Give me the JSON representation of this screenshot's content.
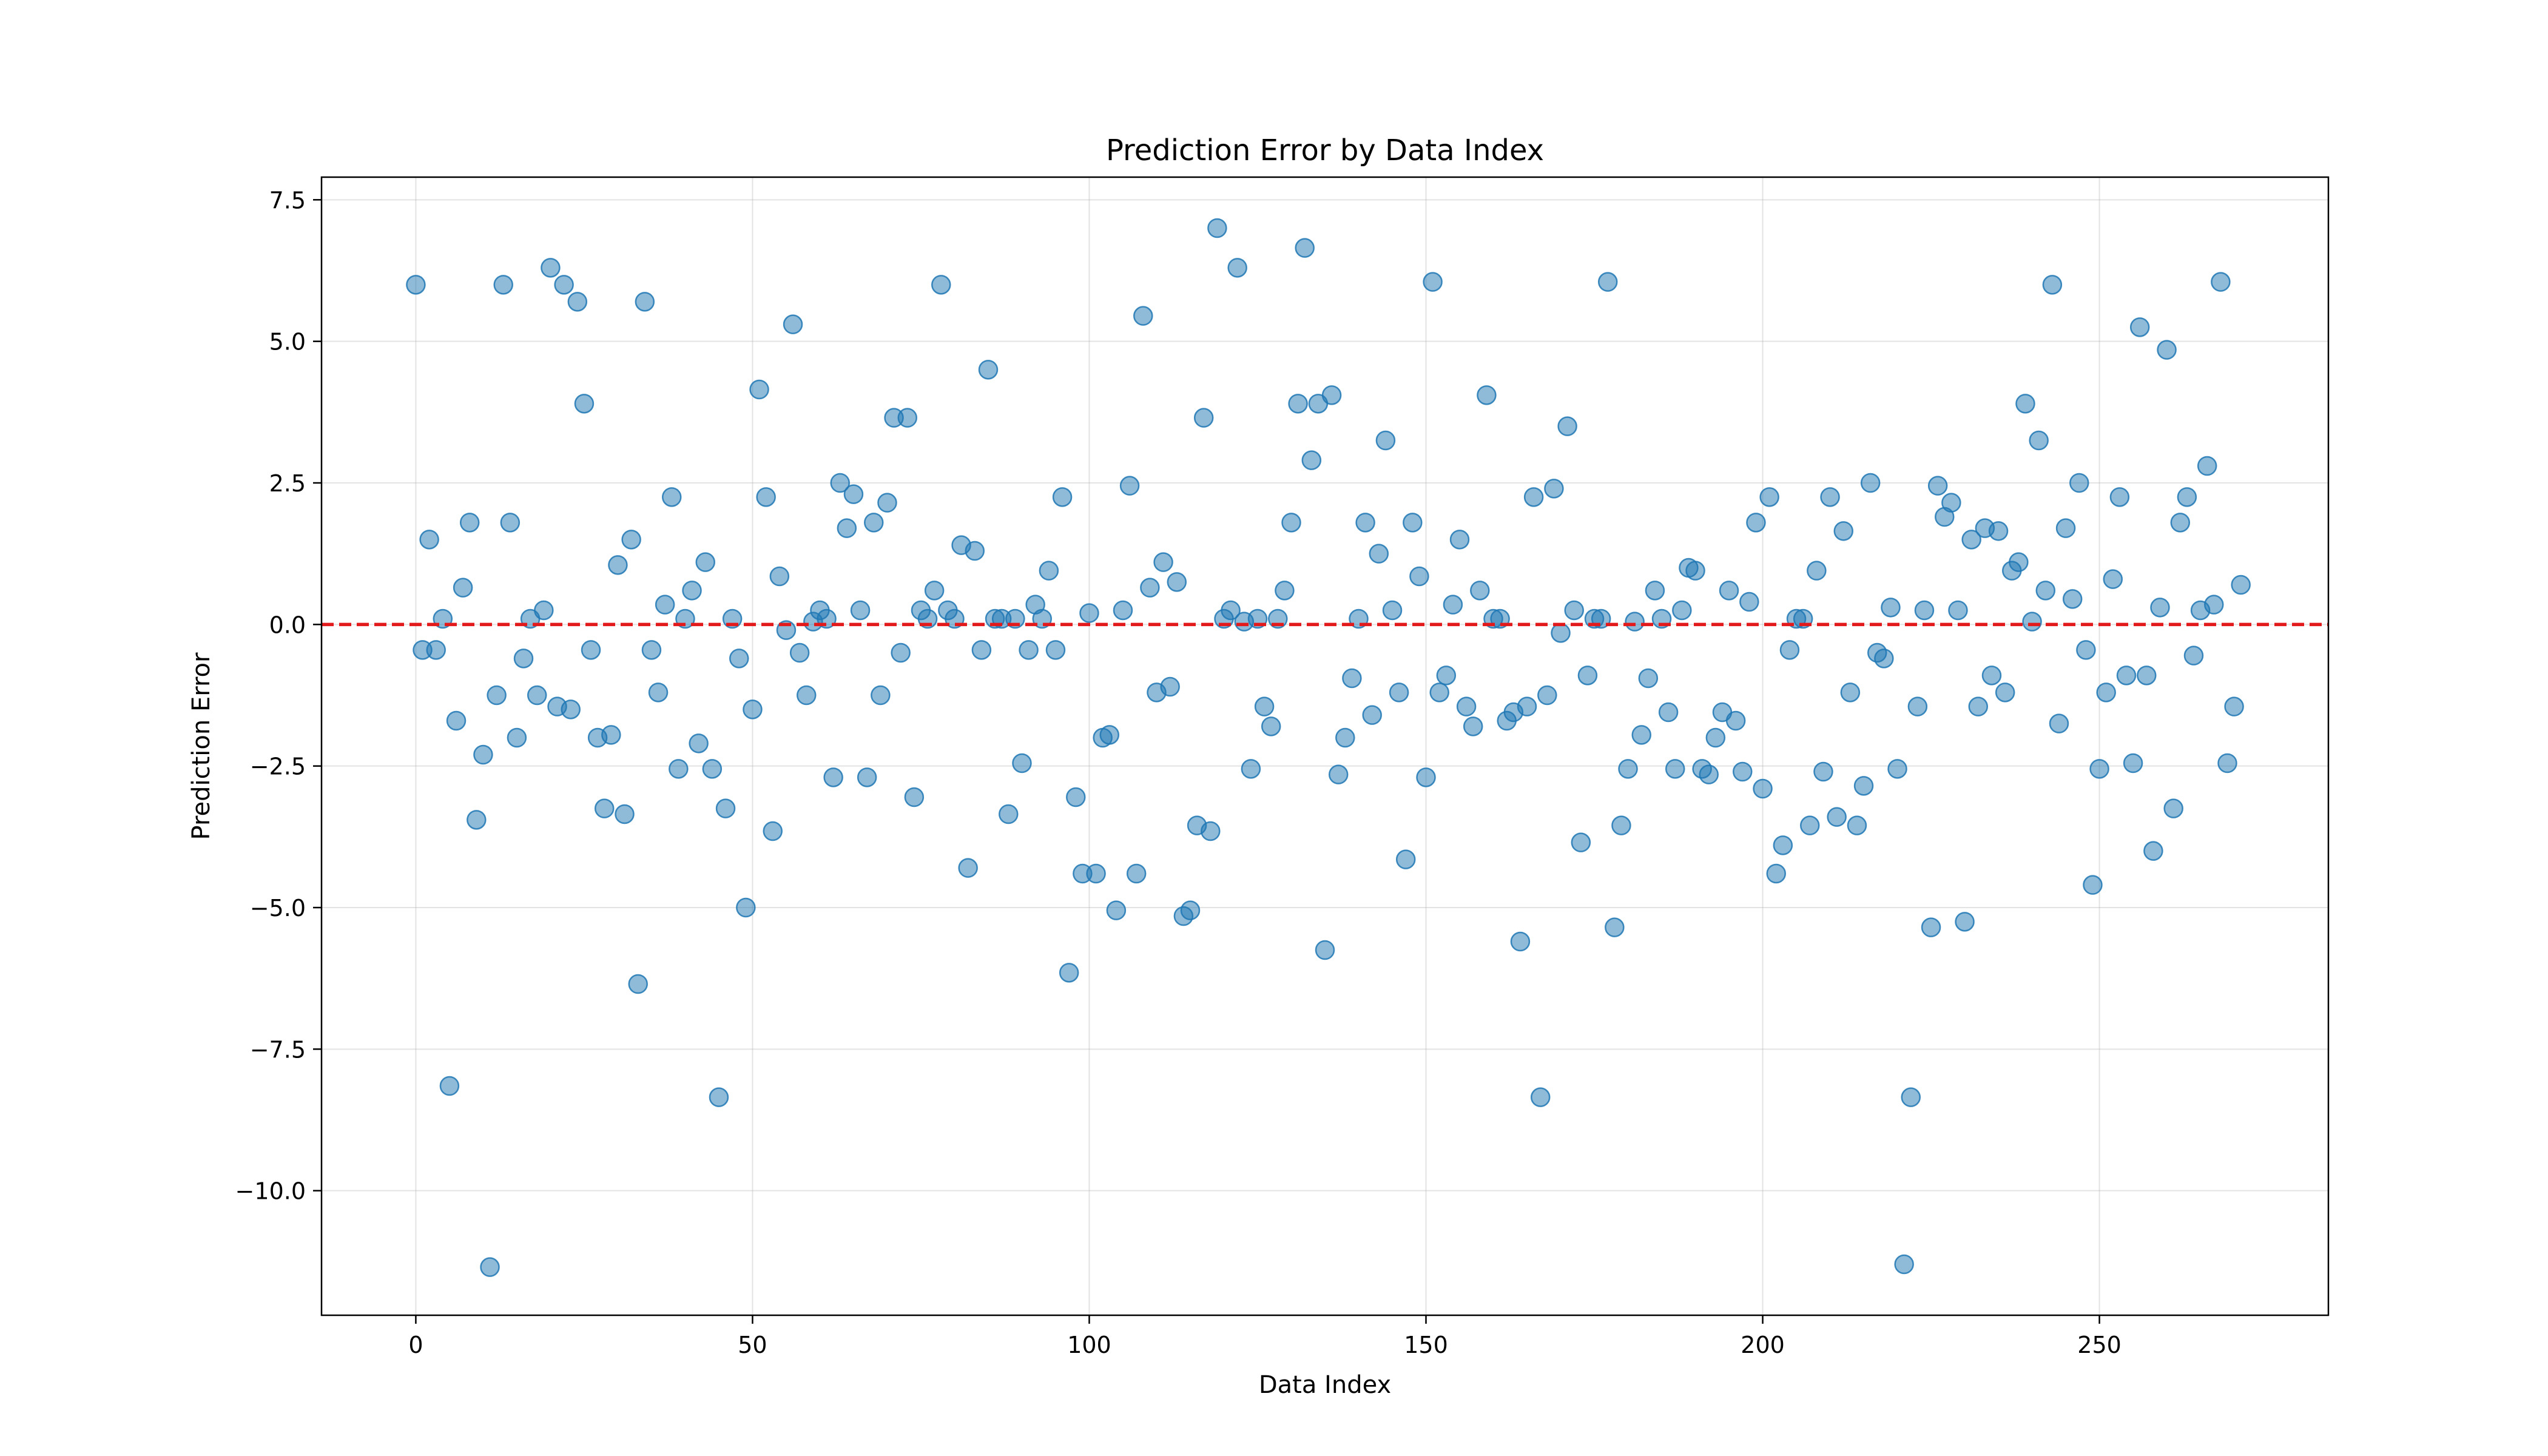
{
  "chart_data": {
    "type": "scatter",
    "title": "Prediction Error by Data Index",
    "xlabel": "Data Index",
    "ylabel": "Prediction Error",
    "xlim": [
      -14,
      284
    ],
    "ylim": [
      -12.2,
      7.9
    ],
    "xticks": [
      0,
      50,
      100,
      150,
      200,
      250
    ],
    "xtick_labels": [
      "0",
      "50",
      "100",
      "150",
      "200",
      "250"
    ],
    "yticks": [
      7.5,
      5.0,
      2.5,
      0.0,
      -2.5,
      -5.0,
      -7.5,
      -10.0
    ],
    "ytick_labels": [
      "7.5",
      "5.0",
      "2.5",
      "0.0",
      "−2.5",
      "−5.0",
      "−7.5",
      "−10.0"
    ],
    "grid": true,
    "reference_line": {
      "y": 0.0,
      "color": "#e31a1c",
      "style": "dashed"
    },
    "point_color": "#1f77b4",
    "x": [
      0,
      1,
      2,
      3,
      4,
      5,
      6,
      7,
      8,
      9,
      10,
      11,
      12,
      13,
      14,
      15,
      16,
      17,
      18,
      19,
      20,
      21,
      22,
      23,
      24,
      25,
      26,
      27,
      28,
      29,
      30,
      31,
      32,
      33,
      34,
      35,
      36,
      37,
      38,
      39,
      40,
      41,
      42,
      43,
      44,
      45,
      46,
      47,
      48,
      49,
      50,
      51,
      52,
      53,
      54,
      55,
      56,
      57,
      58,
      59,
      60,
      61,
      62,
      63,
      64,
      65,
      66,
      67,
      68,
      69,
      70,
      71,
      72,
      73,
      74,
      75,
      76,
      77,
      78,
      79,
      80,
      81,
      82,
      83,
      84,
      85,
      86,
      87,
      88,
      89,
      90,
      91,
      92,
      93,
      94,
      95,
      96,
      97,
      98,
      99,
      100,
      101,
      102,
      103,
      104,
      105,
      106,
      107,
      108,
      109,
      110,
      111,
      112,
      113,
      114,
      115,
      116,
      117,
      118,
      119,
      120,
      121,
      122,
      123,
      124,
      125,
      126,
      127,
      128,
      129,
      130,
      131,
      132,
      133,
      134,
      135,
      136,
      137,
      138,
      139,
      140,
      141,
      142,
      143,
      144,
      145,
      146,
      147,
      148,
      149,
      150,
      151,
      152,
      153,
      154,
      155,
      156,
      157,
      158,
      159,
      160,
      161,
      162,
      163,
      164,
      165,
      166,
      167,
      168,
      169,
      170,
      171,
      172,
      173,
      174,
      175,
      176,
      177,
      178,
      179,
      180,
      181,
      182,
      183,
      184,
      185,
      186,
      187,
      188,
      189,
      190,
      191,
      192,
      193,
      194,
      195,
      196,
      197,
      198,
      199,
      200,
      201,
      202,
      203,
      204,
      205,
      206,
      207,
      208,
      209,
      210,
      211,
      212,
      213,
      214,
      215,
      216,
      217,
      218,
      219,
      220,
      221,
      222,
      223,
      224,
      225,
      226,
      227,
      228,
      229,
      230,
      231,
      232,
      233,
      234,
      235,
      236,
      237,
      238,
      239,
      240,
      241,
      242,
      243,
      244,
      245,
      246,
      247,
      248,
      249,
      250,
      251,
      252,
      253,
      254,
      255,
      256,
      257,
      258,
      259,
      260,
      261,
      262,
      263,
      264,
      265,
      266,
      267,
      268,
      269,
      270,
      271
    ],
    "y": [
      6.0,
      -0.45,
      1.5,
      -0.45,
      0.1,
      -8.15,
      -1.7,
      0.65,
      1.8,
      -3.45,
      -2.3,
      -11.35,
      -1.25,
      6.0,
      1.8,
      -2.0,
      -0.6,
      0.1,
      -1.25,
      0.25,
      6.3,
      -1.45,
      6.0,
      -1.5,
      5.7,
      3.9,
      -0.45,
      -2.0,
      -3.25,
      -1.95,
      1.05,
      -3.35,
      1.5,
      -6.35,
      5.7,
      -0.45,
      -1.2,
      0.35,
      2.25,
      -2.55,
      0.1,
      0.6,
      -2.1,
      1.1,
      -2.55,
      -8.35,
      -3.25,
      0.1,
      -0.6,
      -5.0,
      -1.5,
      4.15,
      2.25,
      -3.65,
      0.85,
      -0.1,
      5.3,
      -0.5,
      -1.25,
      0.05,
      0.25,
      0.1,
      -2.7,
      2.5,
      1.7,
      2.3,
      0.25,
      -2.7,
      1.8,
      -1.25,
      2.15,
      3.65,
      -0.5,
      3.65,
      -3.05,
      0.25,
      0.1,
      0.6,
      6.0,
      0.25,
      0.1,
      1.4,
      -4.3,
      1.3,
      -0.45,
      4.5,
      0.1,
      0.1,
      -3.35,
      0.1,
      -2.45,
      -0.45,
      0.35,
      0.1,
      0.95,
      -0.45,
      2.25,
      -6.15,
      -3.05,
      -4.4,
      0.2,
      -4.4,
      -2.0,
      -1.95,
      -5.05,
      0.25,
      2.45,
      -4.4,
      5.45,
      0.65,
      -1.2,
      1.1,
      -1.1,
      0.75,
      -5.15,
      -5.05,
      -3.55,
      3.65,
      -3.65,
      7.0,
      0.1,
      0.25,
      6.3,
      0.05,
      -2.55,
      0.1,
      -1.45,
      -1.8,
      0.1,
      0.6,
      1.8,
      3.9,
      6.65,
      2.9,
      3.9,
      -5.75,
      4.05,
      -2.65,
      -2.0,
      -0.95,
      0.1,
      1.8,
      -1.6,
      1.25,
      3.25,
      0.25,
      -1.2,
      -4.15,
      1.8,
      0.85,
      -2.7,
      6.05,
      -1.2,
      -0.9,
      0.35,
      1.5,
      -1.45,
      -1.8,
      0.6,
      4.05,
      0.1,
      0.1,
      -1.7,
      -1.55,
      -5.6,
      -1.45,
      2.25,
      -8.35,
      -1.25,
      2.4,
      -0.15,
      3.5,
      0.25,
      -3.85,
      -0.9,
      0.1,
      0.1,
      6.05,
      -5.35,
      -3.55,
      -2.55,
      0.05,
      -1.95,
      -0.95,
      0.6,
      0.1,
      -1.55,
      -2.55,
      0.25,
      1.0,
      0.95,
      -2.55,
      -2.65,
      -2.0,
      -1.55,
      0.6,
      -1.7,
      -2.6,
      0.4,
      1.8,
      -2.9,
      2.25,
      -4.4,
      -3.9,
      -0.45,
      0.1,
      0.1,
      -3.55,
      0.95,
      -2.6,
      2.25,
      -3.4,
      1.65,
      -1.2,
      -3.55,
      -2.85,
      2.5,
      -0.5,
      -0.6,
      0.3,
      -2.55,
      -11.3,
      -8.35,
      -1.45,
      0.25,
      -5.35,
      2.45,
      1.9,
      2.15,
      0.25,
      -5.25,
      1.5,
      -1.45,
      1.7,
      -0.9,
      1.65,
      -1.2,
      0.95,
      1.1,
      3.9,
      0.05,
      3.25,
      0.6,
      6.0,
      -1.75,
      1.7,
      0.45,
      2.5,
      -0.45,
      -4.6,
      -2.55,
      -1.2,
      0.8,
      2.25,
      -0.9,
      -2.45,
      5.25,
      -0.9,
      -4.0,
      0.3,
      4.85,
      -3.25,
      1.8,
      2.25,
      -0.55,
      0.25,
      2.8,
      0.35,
      6.05,
      -2.45,
      -1.45,
      0.7
    ]
  }
}
